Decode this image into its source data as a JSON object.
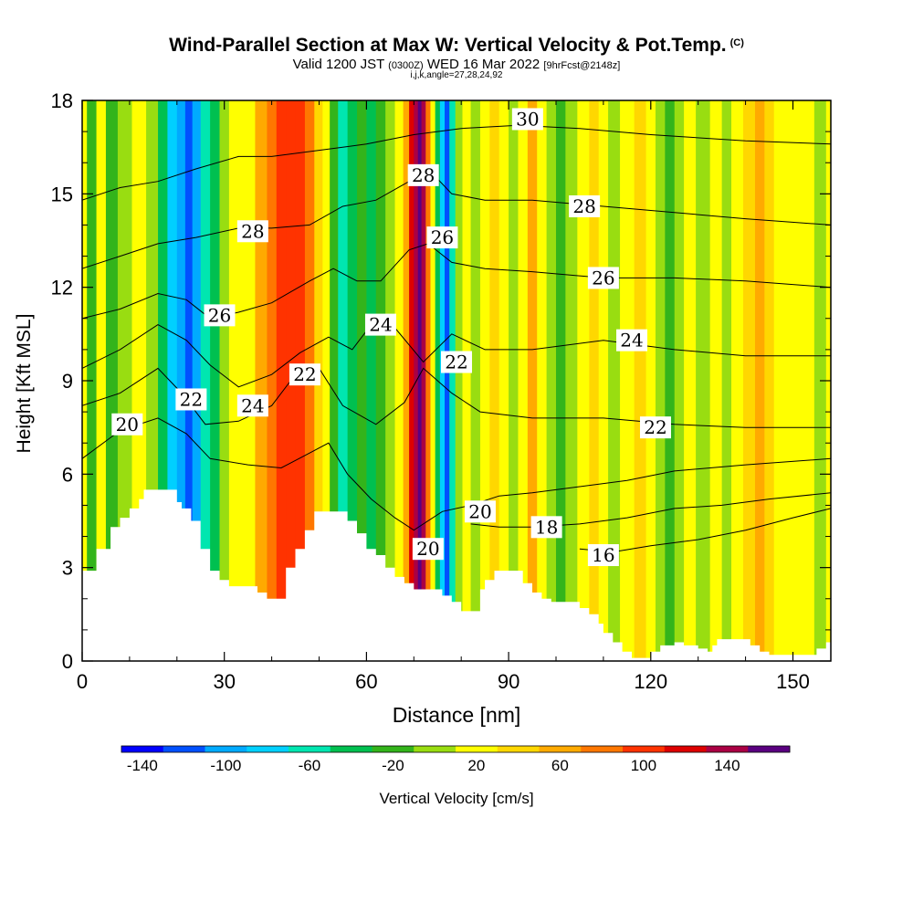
{
  "title": {
    "main": "Wind-Parallel Section at Max W: Vertical Velocity & Pot.Temp.",
    "copyright": "(C)",
    "valid_prefix": "Valid 1200 JST",
    "valid_z": "(0300Z)",
    "valid_date": "WED 16 Mar 2022",
    "forecast": "[9hrFcst@2148z]",
    "indices": "i,j,k,angle=27,28,24,92"
  },
  "chart_data": {
    "type": "heatmap",
    "xlabel": "Distance [nm]",
    "ylabel": "Height [Kft MSL]",
    "xlim": [
      0,
      158
    ],
    "ylim": [
      0,
      18
    ],
    "x_ticks": [
      0,
      30,
      60,
      90,
      120,
      150
    ],
    "y_ticks": [
      0,
      3,
      6,
      9,
      12,
      15,
      18
    ],
    "colorbar": {
      "label": "Vertical Velocity [cm/s]",
      "tick_labels": [
        -140,
        -100,
        -60,
        -20,
        20,
        60,
        100,
        140
      ],
      "bins": [
        {
          "min": -150,
          "max": -130,
          "color": "#0000ff"
        },
        {
          "min": -130,
          "max": -110,
          "color": "#0050ff"
        },
        {
          "min": -110,
          "max": -90,
          "color": "#00aaff"
        },
        {
          "min": -90,
          "max": -70,
          "color": "#00d0ff"
        },
        {
          "min": -70,
          "max": -50,
          "color": "#00e6b0"
        },
        {
          "min": -50,
          "max": -30,
          "color": "#00c050"
        },
        {
          "min": -30,
          "max": -10,
          "color": "#33b41b"
        },
        {
          "min": -10,
          "max": 10,
          "color": "#99dd11"
        },
        {
          "min": 10,
          "max": 30,
          "color": "#ffff00"
        },
        {
          "min": 30,
          "max": 50,
          "color": "#ffd700"
        },
        {
          "min": 50,
          "max": 70,
          "color": "#ffaa00"
        },
        {
          "min": 70,
          "max": 90,
          "color": "#ff7700"
        },
        {
          "min": 90,
          "max": 110,
          "color": "#ff3300"
        },
        {
          "min": 110,
          "max": 130,
          "color": "#dd0000"
        },
        {
          "min": 130,
          "max": 150,
          "color": "#aa0044"
        },
        {
          "min": 150,
          "max": 170,
          "color": "#5a0080"
        }
      ]
    },
    "velocity_columns": [
      {
        "x": 0,
        "value": 25
      },
      {
        "x": 2,
        "value": -20
      },
      {
        "x": 4,
        "value": 15
      },
      {
        "x": 6,
        "value": -25
      },
      {
        "x": 9,
        "value": 0
      },
      {
        "x": 12,
        "value": 20
      },
      {
        "x": 15,
        "value": -10
      },
      {
        "x": 17,
        "value": -45
      },
      {
        "x": 19,
        "value": -80
      },
      {
        "x": 21,
        "value": -110
      },
      {
        "x": 22.5,
        "value": -130
      },
      {
        "x": 24,
        "value": -110
      },
      {
        "x": 26,
        "value": -70
      },
      {
        "x": 28,
        "value": -40
      },
      {
        "x": 30,
        "value": -10
      },
      {
        "x": 32,
        "value": 15
      },
      {
        "x": 35,
        "value": 25
      },
      {
        "x": 38,
        "value": 50
      },
      {
        "x": 40,
        "value": 70
      },
      {
        "x": 42,
        "value": 90
      },
      {
        "x": 44,
        "value": 100
      },
      {
        "x": 46,
        "value": 95
      },
      {
        "x": 48,
        "value": 70
      },
      {
        "x": 50,
        "value": 40
      },
      {
        "x": 51.5,
        "value": 20
      },
      {
        "x": 53,
        "value": -30
      },
      {
        "x": 55,
        "value": -60
      },
      {
        "x": 57,
        "value": -40
      },
      {
        "x": 59,
        "value": -20
      },
      {
        "x": 61,
        "value": -35
      },
      {
        "x": 63,
        "value": -20
      },
      {
        "x": 65,
        "value": 0
      },
      {
        "x": 67,
        "value": 20
      },
      {
        "x": 68.5,
        "value": 60
      },
      {
        "x": 69.5,
        "value": 110
      },
      {
        "x": 70.5,
        "value": 140
      },
      {
        "x": 71.2,
        "value": 160
      },
      {
        "x": 72,
        "value": 140
      },
      {
        "x": 73,
        "value": 80
      },
      {
        "x": 74,
        "value": 20
      },
      {
        "x": 75,
        "value": -40
      },
      {
        "x": 76,
        "value": -90
      },
      {
        "x": 77,
        "value": -120
      },
      {
        "x": 78,
        "value": -60
      },
      {
        "x": 79.5,
        "value": -10
      },
      {
        "x": 81,
        "value": 20
      },
      {
        "x": 83,
        "value": 0
      },
      {
        "x": 85,
        "value": 20
      },
      {
        "x": 87,
        "value": 40
      },
      {
        "x": 89,
        "value": 20
      },
      {
        "x": 91,
        "value": 0
      },
      {
        "x": 93,
        "value": 20
      },
      {
        "x": 95,
        "value": 50
      },
      {
        "x": 97,
        "value": 20
      },
      {
        "x": 99,
        "value": -10
      },
      {
        "x": 101,
        "value": -30
      },
      {
        "x": 103,
        "value": 0
      },
      {
        "x": 106,
        "value": 25
      },
      {
        "x": 108,
        "value": 45
      },
      {
        "x": 110,
        "value": 20
      },
      {
        "x": 112,
        "value": 0
      },
      {
        "x": 115,
        "value": 20
      },
      {
        "x": 118,
        "value": 40
      },
      {
        "x": 120,
        "value": 20
      },
      {
        "x": 122,
        "value": 0
      },
      {
        "x": 124,
        "value": -20
      },
      {
        "x": 126,
        "value": 0
      },
      {
        "x": 128,
        "value": 20
      },
      {
        "x": 131,
        "value": 5
      },
      {
        "x": 134,
        "value": 20
      },
      {
        "x": 136,
        "value": 0
      },
      {
        "x": 138,
        "value": 20
      },
      {
        "x": 141,
        "value": 40
      },
      {
        "x": 143,
        "value": 60
      },
      {
        "x": 145,
        "value": 40
      },
      {
        "x": 147,
        "value": 20
      },
      {
        "x": 150,
        "value": 10
      },
      {
        "x": 153,
        "value": 20
      },
      {
        "x": 156,
        "value": 0
      },
      {
        "x": 158,
        "value": 20
      }
    ],
    "terrain": [
      [
        0,
        2.9
      ],
      [
        3,
        3.6
      ],
      [
        6,
        4.3
      ],
      [
        8,
        4.6
      ],
      [
        10,
        4.9
      ],
      [
        12,
        5.2
      ],
      [
        13,
        5.5
      ],
      [
        19,
        5.5
      ],
      [
        20,
        5.1
      ],
      [
        21,
        4.9
      ],
      [
        23,
        4.5
      ],
      [
        25,
        3.6
      ],
      [
        27,
        2.9
      ],
      [
        29,
        2.6
      ],
      [
        31,
        2.4
      ],
      [
        35,
        2.4
      ],
      [
        37,
        2.2
      ],
      [
        39,
        2.0
      ],
      [
        42,
        2.0
      ],
      [
        43,
        3.0
      ],
      [
        45,
        3.6
      ],
      [
        47,
        4.2
      ],
      [
        49,
        4.8
      ],
      [
        54,
        4.8
      ],
      [
        56,
        4.5
      ],
      [
        58,
        4.1
      ],
      [
        60,
        3.6
      ],
      [
        62,
        3.4
      ],
      [
        64,
        3.0
      ],
      [
        66,
        2.7
      ],
      [
        68,
        2.5
      ],
      [
        70,
        2.3
      ],
      [
        74,
        2.3
      ],
      [
        76,
        2.1
      ],
      [
        78,
        1.9
      ],
      [
        80,
        1.6
      ],
      [
        83,
        1.6
      ],
      [
        84,
        2.3
      ],
      [
        85,
        2.6
      ],
      [
        87,
        2.9
      ],
      [
        92,
        2.9
      ],
      [
        93,
        2.5
      ],
      [
        95,
        2.2
      ],
      [
        97,
        2.0
      ],
      [
        99,
        1.9
      ],
      [
        103,
        1.9
      ],
      [
        105,
        1.7
      ],
      [
        107,
        1.5
      ],
      [
        109,
        1.2
      ],
      [
        110,
        0.9
      ],
      [
        112,
        0.6
      ],
      [
        114,
        0.3
      ],
      [
        116,
        0.1
      ],
      [
        118,
        0.1
      ],
      [
        120,
        0.3
      ],
      [
        122,
        0.5
      ],
      [
        125,
        0.6
      ],
      [
        127,
        0.5
      ],
      [
        130,
        0.4
      ],
      [
        132,
        0.3
      ],
      [
        133,
        0.5
      ],
      [
        134,
        0.7
      ],
      [
        140,
        0.7
      ],
      [
        141,
        0.5
      ],
      [
        143,
        0.3
      ],
      [
        145,
        0.2
      ],
      [
        153,
        0.2
      ],
      [
        155,
        0.4
      ],
      [
        157,
        0.6
      ],
      [
        158,
        0.7
      ]
    ],
    "theta_contours": [
      {
        "value": 16,
        "labeled": true,
        "points": [
          [
            105,
            3.6
          ],
          [
            112,
            3.5
          ],
          [
            120,
            3.7
          ],
          [
            130,
            3.9
          ],
          [
            140,
            4.2
          ],
          [
            150,
            4.6
          ],
          [
            158,
            4.9
          ]
        ]
      },
      {
        "value": 18,
        "labeled": true,
        "points": [
          [
            82,
            4.4
          ],
          [
            88,
            4.3
          ],
          [
            95,
            4.3
          ],
          [
            105,
            4.4
          ],
          [
            115,
            4.6
          ],
          [
            125,
            4.9
          ],
          [
            135,
            5.0
          ],
          [
            145,
            5.2
          ],
          [
            158,
            5.4
          ]
        ]
      },
      {
        "value": 20,
        "labeled": true,
        "points": [
          [
            0,
            6.5
          ],
          [
            8,
            7.4
          ],
          [
            16,
            7.8
          ],
          [
            22,
            7.3
          ],
          [
            27,
            6.5
          ],
          [
            35,
            6.3
          ],
          [
            42,
            6.2
          ],
          [
            47,
            6.6
          ],
          [
            52,
            7.0
          ],
          [
            56,
            6.0
          ],
          [
            61,
            5.2
          ],
          [
            66,
            4.6
          ],
          [
            70,
            4.2
          ],
          [
            76,
            4.8
          ],
          [
            82,
            5.0
          ],
          [
            88,
            5.3
          ],
          [
            95,
            5.4
          ],
          [
            105,
            5.6
          ],
          [
            115,
            5.8
          ],
          [
            125,
            6.1
          ],
          [
            140,
            6.3
          ],
          [
            158,
            6.5
          ]
        ]
      },
      {
        "value": 22,
        "labeled": true,
        "points": [
          [
            0,
            8.2
          ],
          [
            8,
            8.6
          ],
          [
            16,
            9.4
          ],
          [
            21,
            8.6
          ],
          [
            26,
            7.6
          ],
          [
            33,
            7.7
          ],
          [
            40,
            8.2
          ],
          [
            44,
            9.0
          ],
          [
            50,
            9.4
          ],
          [
            55,
            8.2
          ],
          [
            62,
            7.6
          ],
          [
            68,
            8.3
          ],
          [
            72,
            9.4
          ],
          [
            78,
            8.6
          ],
          [
            84,
            8.0
          ],
          [
            95,
            7.8
          ],
          [
            110,
            7.8
          ],
          [
            125,
            7.6
          ],
          [
            140,
            7.5
          ],
          [
            158,
            7.5
          ]
        ]
      },
      {
        "value": 24,
        "labeled": true,
        "points": [
          [
            0,
            9.4
          ],
          [
            8,
            10.0
          ],
          [
            16,
            10.8
          ],
          [
            22,
            10.3
          ],
          [
            27,
            9.5
          ],
          [
            33,
            8.8
          ],
          [
            40,
            9.2
          ],
          [
            46,
            9.9
          ],
          [
            52,
            10.4
          ],
          [
            57,
            10.0
          ],
          [
            61,
            10.8
          ],
          [
            66,
            10.7
          ],
          [
            72,
            9.6
          ],
          [
            78,
            10.5
          ],
          [
            85,
            10.0
          ],
          [
            95,
            10.0
          ],
          [
            110,
            10.3
          ],
          [
            125,
            10.0
          ],
          [
            140,
            9.8
          ],
          [
            158,
            9.8
          ]
        ]
      },
      {
        "value": 26,
        "labeled": true,
        "points": [
          [
            0,
            11.0
          ],
          [
            8,
            11.3
          ],
          [
            16,
            11.8
          ],
          [
            22,
            11.6
          ],
          [
            27,
            11.0
          ],
          [
            33,
            11.2
          ],
          [
            40,
            11.5
          ],
          [
            48,
            12.2
          ],
          [
            53,
            12.6
          ],
          [
            58,
            12.2
          ],
          [
            63,
            12.2
          ],
          [
            69,
            13.2
          ],
          [
            73,
            13.4
          ],
          [
            78,
            12.8
          ],
          [
            85,
            12.6
          ],
          [
            95,
            12.5
          ],
          [
            110,
            12.3
          ],
          [
            125,
            12.3
          ],
          [
            140,
            12.2
          ],
          [
            158,
            12.0
          ]
        ]
      },
      {
        "value": 28,
        "labeled": true,
        "points": [
          [
            0,
            12.6
          ],
          [
            8,
            13.0
          ],
          [
            16,
            13.4
          ],
          [
            24,
            13.6
          ],
          [
            33,
            13.9
          ],
          [
            40,
            13.9
          ],
          [
            48,
            14.0
          ],
          [
            55,
            14.6
          ],
          [
            62,
            14.8
          ],
          [
            69,
            15.4
          ],
          [
            73,
            15.8
          ],
          [
            78,
            15.0
          ],
          [
            85,
            14.8
          ],
          [
            95,
            14.8
          ],
          [
            110,
            14.6
          ],
          [
            125,
            14.4
          ],
          [
            140,
            14.2
          ],
          [
            158,
            14.0
          ]
        ]
      },
      {
        "value": 30,
        "labeled": true,
        "points": [
          [
            0,
            14.8
          ],
          [
            8,
            15.2
          ],
          [
            16,
            15.4
          ],
          [
            24,
            15.8
          ],
          [
            33,
            16.2
          ],
          [
            40,
            16.2
          ],
          [
            50,
            16.4
          ],
          [
            60,
            16.6
          ],
          [
            70,
            16.9
          ],
          [
            80,
            17.1
          ],
          [
            92,
            17.2
          ],
          [
            105,
            17.1
          ],
          [
            120,
            16.9
          ],
          [
            140,
            16.7
          ],
          [
            158,
            16.6
          ]
        ]
      }
    ],
    "contour_labels": [
      {
        "value": "16",
        "x": 110,
        "y": 3.4
      },
      {
        "value": "18",
        "x": 98,
        "y": 4.3
      },
      {
        "value": "20",
        "x": 84,
        "y": 4.8
      },
      {
        "value": "20",
        "x": 73,
        "y": 3.6
      },
      {
        "value": "20",
        "x": 9.5,
        "y": 7.6
      },
      {
        "value": "22",
        "x": 23,
        "y": 8.4
      },
      {
        "value": "22",
        "x": 47,
        "y": 9.2
      },
      {
        "value": "22",
        "x": 79,
        "y": 9.6
      },
      {
        "value": "22",
        "x": 121,
        "y": 7.5
      },
      {
        "value": "24",
        "x": 36,
        "y": 8.2
      },
      {
        "value": "24",
        "x": 63,
        "y": 10.8
      },
      {
        "value": "24",
        "x": 116,
        "y": 10.3
      },
      {
        "value": "26",
        "x": 29,
        "y": 11.1
      },
      {
        "value": "26",
        "x": 76,
        "y": 13.6
      },
      {
        "value": "26",
        "x": 110,
        "y": 12.3
      },
      {
        "value": "28",
        "x": 36,
        "y": 13.8
      },
      {
        "value": "28",
        "x": 72,
        "y": 15.6
      },
      {
        "value": "28",
        "x": 106,
        "y": 14.6
      },
      {
        "value": "30",
        "x": 94,
        "y": 17.4
      }
    ]
  }
}
